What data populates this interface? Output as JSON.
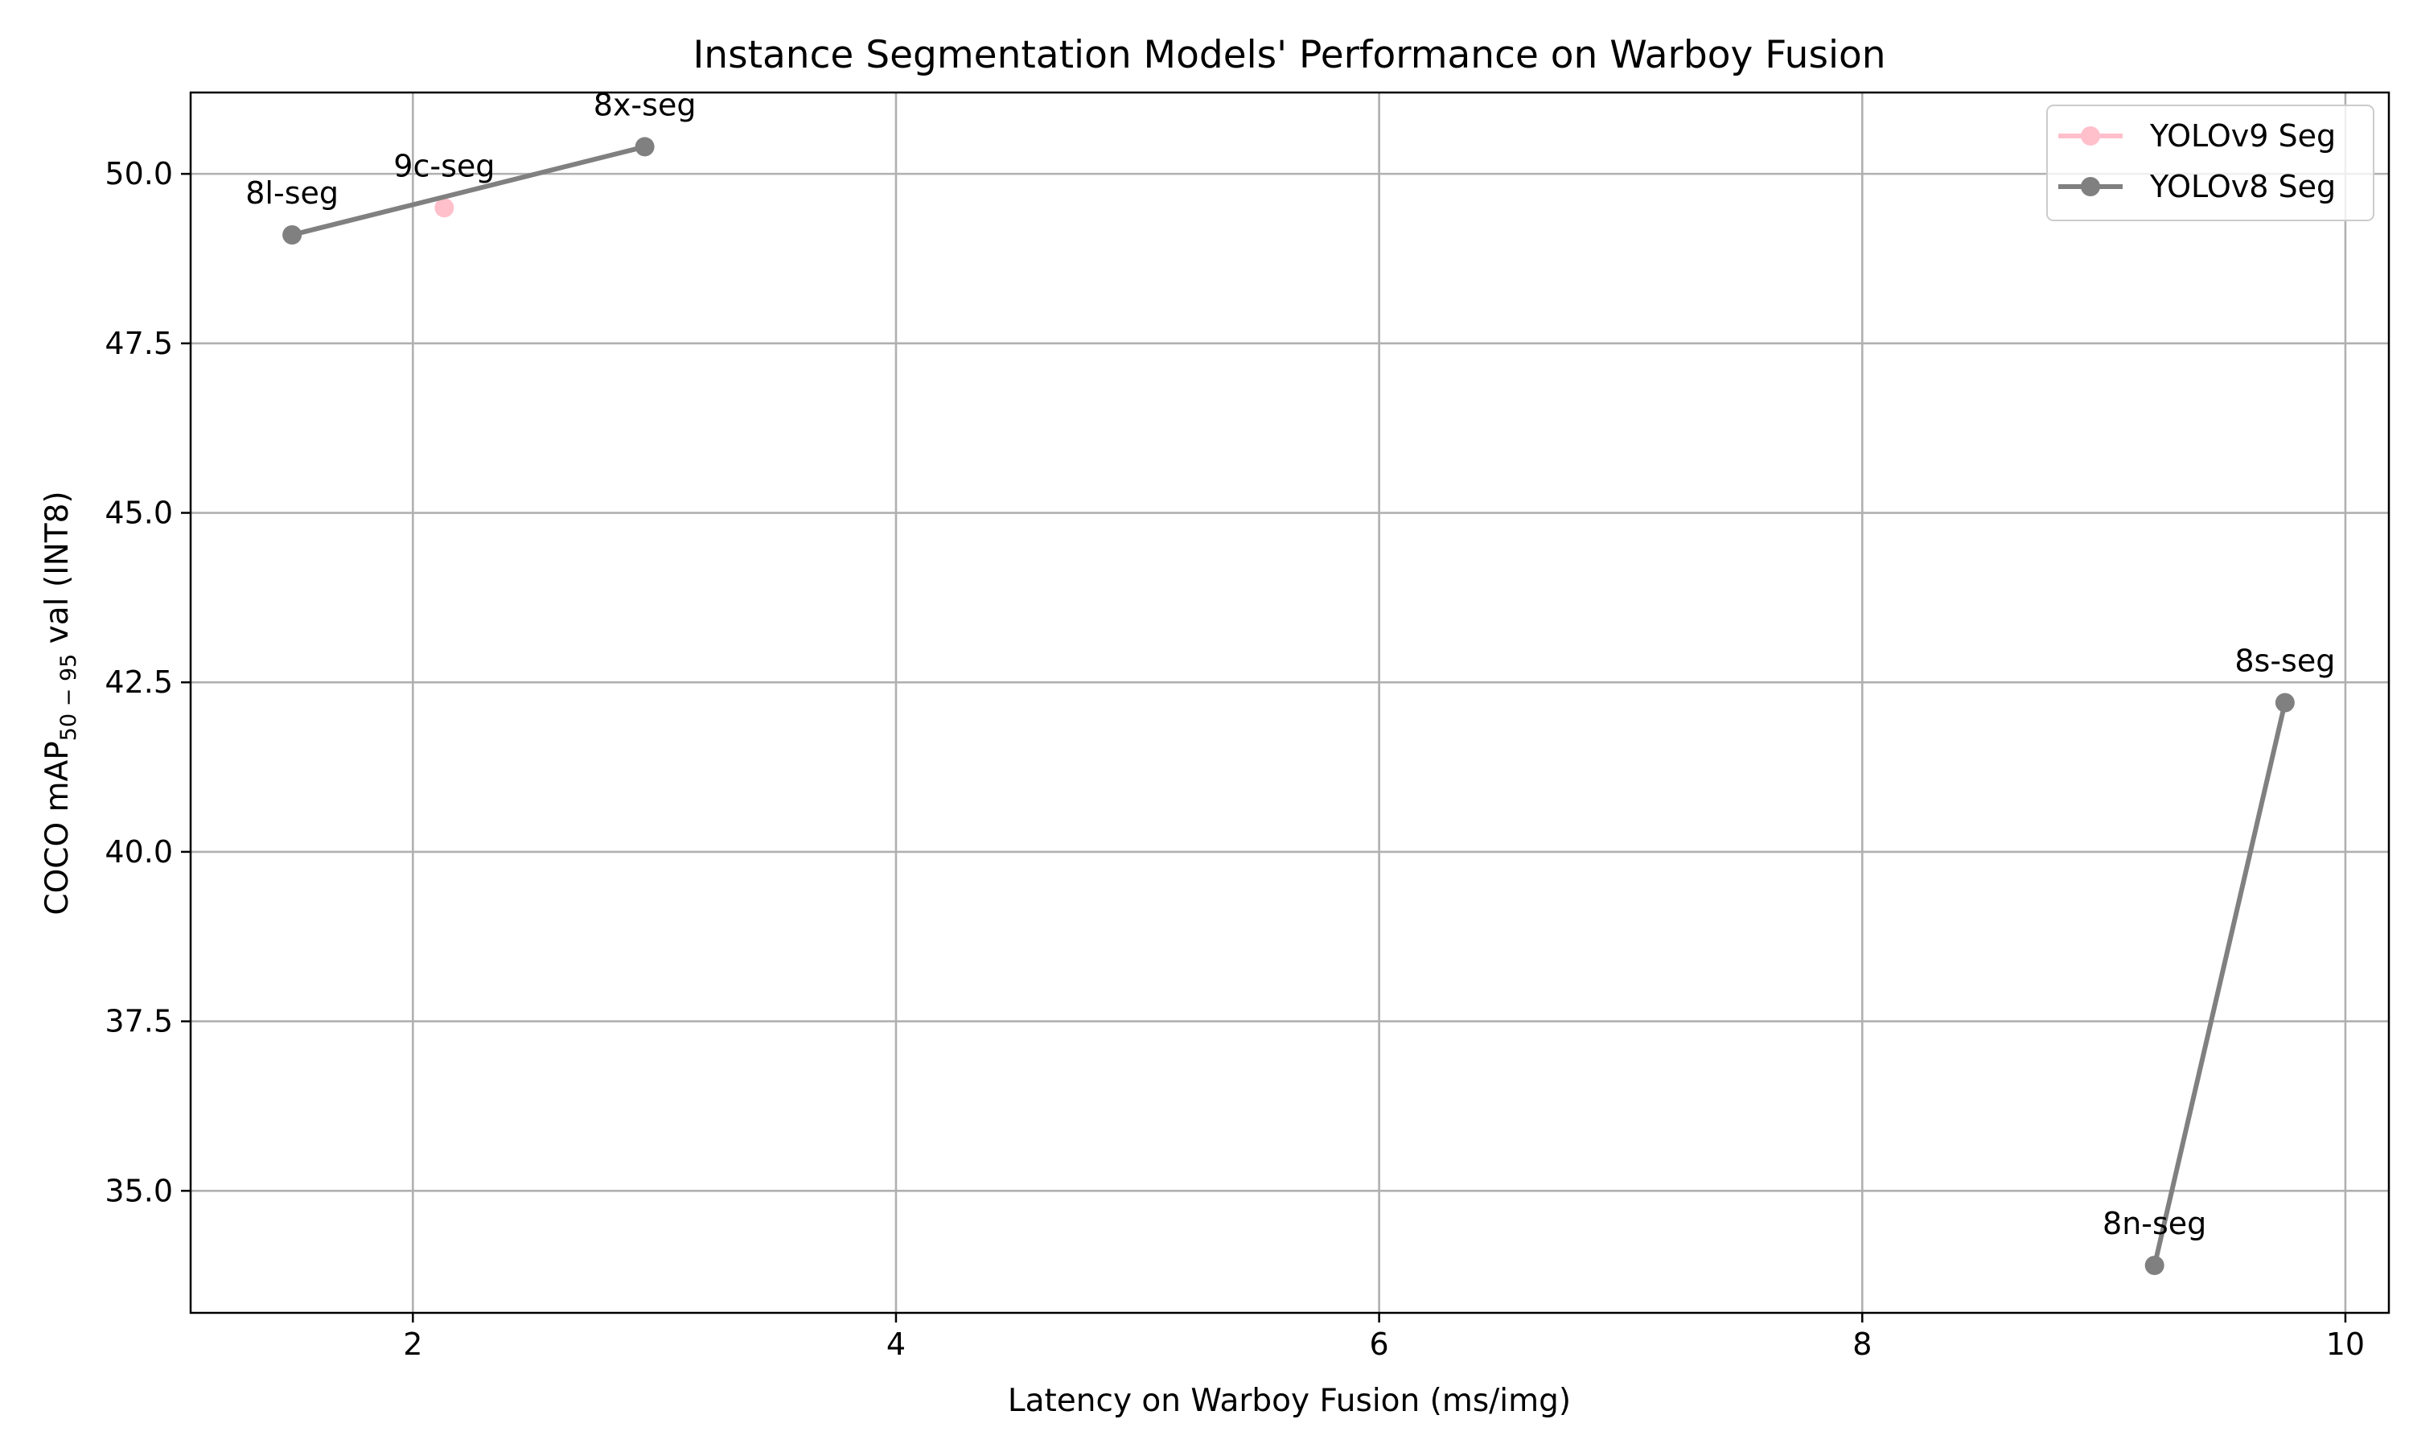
{
  "chart_data": {
    "type": "line",
    "title": "Instance Segmentation Models' Performance on Warboy Fusion",
    "xlabel": "Latency on Warboy Fusion (ms/img)",
    "ylabel_parts": {
      "prefix": "COCO mAP",
      "subscript": "50 − 95",
      "suffix": " val (INT8)"
    },
    "xlim": [
      1.08,
      10.18
    ],
    "ylim": [
      33.2,
      51.2
    ],
    "x_ticks": [
      {
        "value": 2,
        "label": "2"
      },
      {
        "value": 4,
        "label": "4"
      },
      {
        "value": 6,
        "label": "6"
      },
      {
        "value": 8,
        "label": "8"
      },
      {
        "value": 10,
        "label": "10"
      }
    ],
    "y_ticks": [
      {
        "value": 35.0,
        "label": "35.0"
      },
      {
        "value": 37.5,
        "label": "37.5"
      },
      {
        "value": 40.0,
        "label": "40.0"
      },
      {
        "value": 42.5,
        "label": "42.5"
      },
      {
        "value": 45.0,
        "label": "45.0"
      },
      {
        "value": 47.5,
        "label": "47.5"
      },
      {
        "value": 50.0,
        "label": "50.0"
      }
    ],
    "grid": true,
    "legend_position": "top-right",
    "series": [
      {
        "name": "YOLOv9 Seg",
        "color": "#ffc0cb",
        "points": [
          {
            "x": 2.13,
            "y": 49.5,
            "label": "9c-seg"
          }
        ]
      },
      {
        "name": "YOLOv8 Seg",
        "color": "#808080",
        "points": [
          {
            "x": 9.21,
            "y": 33.9,
            "label": "8n-seg"
          },
          {
            "x": 9.75,
            "y": 42.2,
            "label": "8s-seg"
          },
          {
            "x": 1.5,
            "y": 49.1,
            "label": "8l-seg"
          },
          {
            "x": 2.96,
            "y": 50.4,
            "label": "8x-seg"
          }
        ],
        "segments": [
          [
            0,
            1
          ],
          [
            2,
            3
          ]
        ]
      }
    ]
  }
}
